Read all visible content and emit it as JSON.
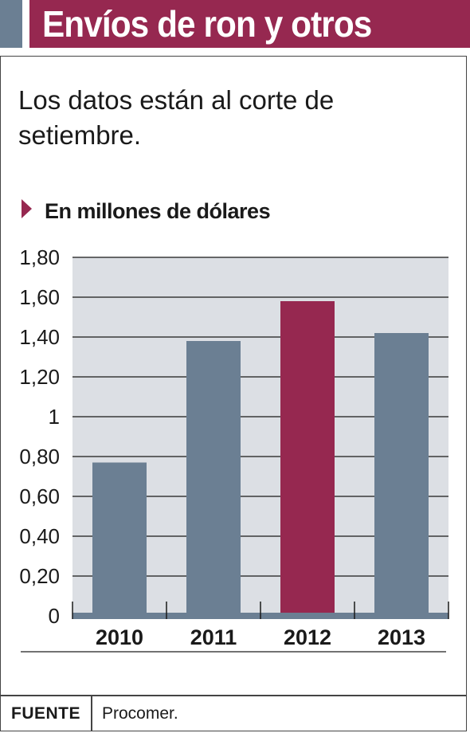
{
  "header": {
    "title": "Envíos de ron y otros",
    "accent_color": "#6b7f93",
    "bar_color": "#962850"
  },
  "subtitle": "Los datos están al corte de setiembre.",
  "unit_label": "En millones de dólares",
  "source": {
    "label": "FUENTE",
    "text": "Procomer."
  },
  "chart_data": {
    "type": "bar",
    "categories": [
      "2010",
      "2011",
      "2012",
      "2013"
    ],
    "values": [
      0.77,
      1.38,
      1.58,
      1.42
    ],
    "ylim": [
      0,
      1.8
    ],
    "yticks": [
      0,
      0.2,
      0.4,
      0.6,
      0.8,
      1,
      1.2,
      1.4,
      1.6,
      1.8
    ],
    "ytick_labels": [
      "0",
      "0,20",
      "0,40",
      "0,60",
      "0,80",
      "1",
      "1,20",
      "1,40",
      "1,60",
      "1,80"
    ],
    "highlight_index": 2,
    "grid": true,
    "colors": {
      "bar": "#6b7f93",
      "highlight": "#962850",
      "plot_background": "#dcdfe4",
      "grid": "#3a3a3a"
    }
  }
}
